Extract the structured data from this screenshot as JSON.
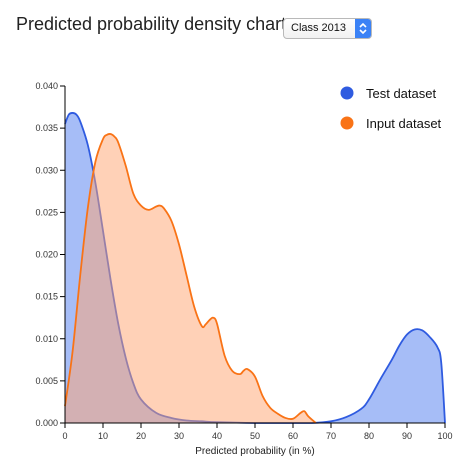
{
  "header": {
    "title": "Predicted probability density chart",
    "class_select": {
      "value": "Class 2013",
      "icon": "chevron-up-down-icon"
    }
  },
  "colors": {
    "test_fill": "#5c87f1",
    "test_stroke": "#2f5be0",
    "input_fill": "#ffa36f",
    "input_stroke": "#f97316",
    "axis": "#000000"
  },
  "chart_data": {
    "type": "area",
    "title": "Predicted probability density chart",
    "xlabel": "Predicted probability (in %)",
    "ylabel": "",
    "xlim": [
      0,
      100
    ],
    "ylim": [
      0,
      0.04
    ],
    "xticks": [
      0,
      10,
      20,
      30,
      40,
      50,
      60,
      70,
      80,
      90,
      100
    ],
    "xtick_labels": [
      "0",
      "10",
      "20",
      "30",
      "40",
      "50",
      "60",
      "70",
      "80",
      "90",
      "100"
    ],
    "yticks": [
      0,
      0.005,
      0.01,
      0.015,
      0.02,
      0.025,
      0.03,
      0.035,
      0.04
    ],
    "ytick_labels": [
      "0.000",
      "0.005",
      "0.010",
      "0.015",
      "0.020",
      "0.025",
      "0.030",
      "0.035",
      "0.040"
    ],
    "grid": false,
    "legend_position": "top-right",
    "series": [
      {
        "name": "Test dataset",
        "x": [
          0,
          1,
          2,
          3,
          4,
          6,
          8,
          10,
          12,
          14,
          16,
          18,
          20,
          24,
          28,
          32,
          36,
          40,
          50,
          60,
          65,
          70,
          74,
          78,
          80,
          83,
          86,
          88,
          90,
          92,
          94,
          96,
          98,
          99,
          100
        ],
        "y": [
          0.0355,
          0.0366,
          0.0368,
          0.0366,
          0.0358,
          0.033,
          0.0285,
          0.0228,
          0.017,
          0.0118,
          0.0077,
          0.0047,
          0.0028,
          0.0012,
          0.0006,
          0.0003,
          0.0002,
          0.0001,
          0.0,
          0.0,
          0.0,
          0.0002,
          0.0007,
          0.0017,
          0.0028,
          0.0052,
          0.0075,
          0.0092,
          0.0105,
          0.0111,
          0.011,
          0.0102,
          0.009,
          0.0072,
          0.0
        ]
      },
      {
        "name": "Input dataset",
        "x": [
          0,
          2,
          4,
          6,
          8,
          10,
          11,
          12,
          13,
          14,
          16,
          18,
          20,
          22,
          24,
          25,
          26,
          28,
          30,
          32,
          34,
          36,
          37,
          38,
          39,
          40,
          42,
          44,
          46,
          47,
          48,
          50,
          52,
          54,
          56,
          58,
          60,
          62,
          63,
          64,
          66
        ],
        "y": [
          0.002,
          0.0085,
          0.0175,
          0.0255,
          0.031,
          0.0337,
          0.0342,
          0.0343,
          0.034,
          0.0333,
          0.0305,
          0.0272,
          0.0258,
          0.0253,
          0.0257,
          0.0258,
          0.0255,
          0.024,
          0.0212,
          0.0175,
          0.0138,
          0.0115,
          0.0117,
          0.0122,
          0.0125,
          0.0118,
          0.008,
          0.0062,
          0.0058,
          0.0062,
          0.0064,
          0.0055,
          0.0032,
          0.0018,
          0.0011,
          0.0006,
          0.0005,
          0.0012,
          0.0014,
          0.0008,
          0.0
        ]
      }
    ]
  }
}
